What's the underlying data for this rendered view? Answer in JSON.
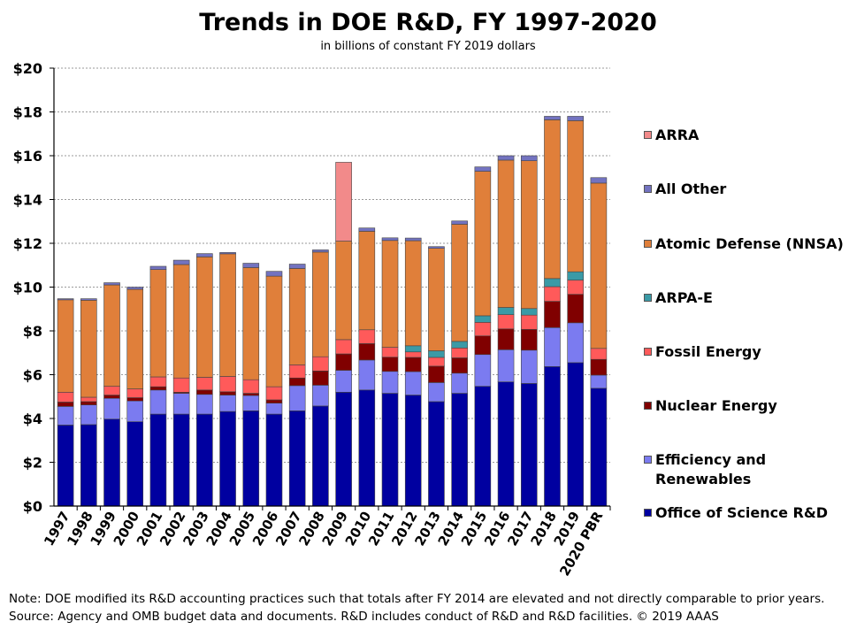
{
  "chart_data": {
    "type": "bar",
    "stacked": true,
    "title": "Trends in DOE R&D, FY 1997-2020",
    "subtitle": "in billions of constant FY 2019 dollars",
    "xlabel": "",
    "ylabel": "",
    "ylim": [
      0,
      20
    ],
    "yticks": [
      0,
      2,
      4,
      6,
      8,
      10,
      12,
      14,
      16,
      18,
      20
    ],
    "ytick_labels": [
      "$0",
      "$2",
      "$4",
      "$6",
      "$8",
      "$10",
      "$12",
      "$14",
      "$16",
      "$18",
      "$20"
    ],
    "grid": true,
    "legend_position": "right",
    "categories": [
      "1997",
      "1998",
      "1999",
      "2000",
      "2001",
      "2002",
      "2003",
      "2004",
      "2005",
      "2006",
      "2007",
      "2008",
      "2009",
      "2010",
      "2011",
      "2012",
      "2013",
      "2014",
      "2015",
      "2016",
      "2017",
      "2018",
      "2019",
      "2020 PBR"
    ],
    "series": [
      {
        "name": "Office of Science R&D",
        "color": "#0000a0",
        "values": [
          3.7,
          3.72,
          3.97,
          3.85,
          4.2,
          4.2,
          4.2,
          4.32,
          4.35,
          4.2,
          4.35,
          4.57,
          5.2,
          5.3,
          5.15,
          5.07,
          4.77,
          5.15,
          5.47,
          5.67,
          5.6,
          6.37,
          6.55,
          5.38
        ]
      },
      {
        "name": "Efficiency and Renewables",
        "color": "#7b7bf0",
        "values": [
          0.85,
          0.9,
          0.95,
          0.95,
          1.1,
          0.95,
          0.9,
          0.75,
          0.7,
          0.5,
          1.15,
          0.95,
          1.0,
          1.37,
          1.0,
          1.07,
          0.87,
          0.92,
          1.45,
          1.47,
          1.52,
          1.78,
          1.82,
          0.6
        ]
      },
      {
        "name": "Nuclear Energy",
        "color": "#800000",
        "values": [
          0.2,
          0.15,
          0.15,
          0.15,
          0.15,
          0.05,
          0.2,
          0.15,
          0.1,
          0.15,
          0.35,
          0.65,
          0.75,
          0.75,
          0.65,
          0.65,
          0.75,
          0.7,
          0.85,
          0.95,
          0.95,
          1.2,
          1.3,
          0.72
        ]
      },
      {
        "name": "Fossil Energy",
        "color": "#ff5a5a",
        "values": [
          0.45,
          0.2,
          0.4,
          0.4,
          0.45,
          0.65,
          0.58,
          0.7,
          0.62,
          0.6,
          0.6,
          0.65,
          0.65,
          0.63,
          0.45,
          0.25,
          0.4,
          0.45,
          0.62,
          0.65,
          0.65,
          0.67,
          0.65,
          0.5
        ]
      },
      {
        "name": "ARPA-E",
        "color": "#3a9aa6",
        "values": [
          0,
          0,
          0,
          0,
          0,
          0,
          0,
          0,
          0,
          0,
          0,
          0,
          0,
          0,
          0,
          0.28,
          0.3,
          0.3,
          0.3,
          0.33,
          0.3,
          0.37,
          0.38,
          0
        ]
      },
      {
        "name": "Atomic Defense (NNSA)",
        "color": "#e07f3a",
        "values": [
          4.22,
          4.43,
          4.63,
          4.55,
          4.9,
          5.18,
          5.5,
          5.6,
          5.12,
          5.05,
          4.4,
          4.78,
          4.5,
          4.5,
          4.88,
          4.8,
          4.68,
          5.35,
          6.6,
          6.73,
          6.75,
          7.25,
          6.9,
          7.55
        ]
      },
      {
        "name": "ARRA",
        "color": "#f28a8a",
        "values": [
          0,
          0,
          0,
          0,
          0,
          0,
          0,
          0,
          0,
          0,
          0,
          0,
          3.6,
          0,
          0,
          0,
          0,
          0,
          0,
          0,
          0,
          0,
          0,
          0
        ]
      },
      {
        "name": "All Other",
        "color": "#7373c0",
        "values": [
          0.05,
          0.07,
          0.1,
          0.1,
          0.15,
          0.2,
          0.15,
          0.06,
          0.2,
          0.22,
          0.2,
          0.1,
          0,
          0.15,
          0.12,
          0.12,
          0.08,
          0.15,
          0.2,
          0.2,
          0.23,
          0.16,
          0.2,
          0.25
        ]
      }
    ],
    "legend_entries": [
      "ARRA",
      "All Other",
      "Atomic Defense (NNSA)",
      "ARPA-E",
      "Fossil Energy",
      "Nuclear Energy",
      "Efficiency and\nRenewables",
      "Office of Science R&D"
    ],
    "note": "Note: DOE modified its R&D accounting practices such that totals after FY 2014 are elevated and not directly comparable to prior years. Source: Agency and OMB budget data and documents. R&D includes conduct of R&D and R&D facilities. © 2019 AAAS"
  }
}
